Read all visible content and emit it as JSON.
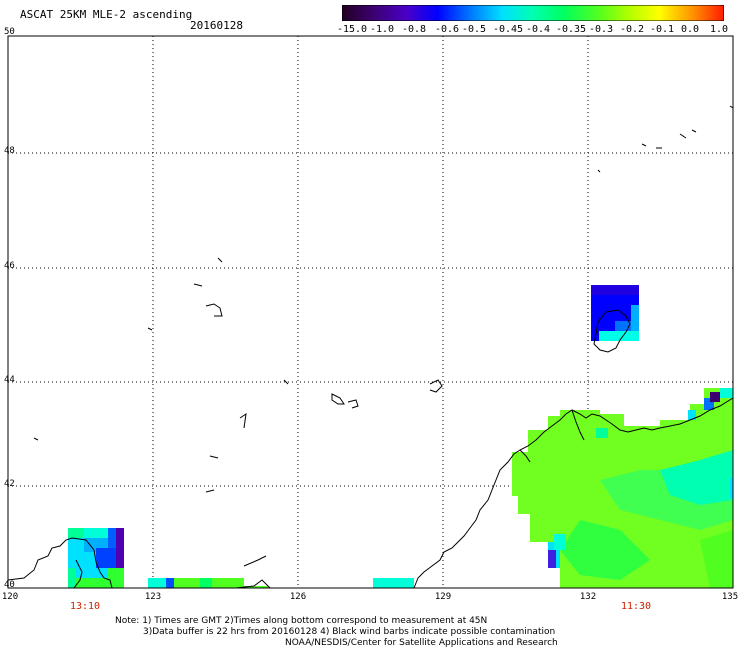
{
  "header": {
    "title": "ASCAT 25KM MLE-2 ascending",
    "date": "20160128"
  },
  "colorbar": {
    "labels": [
      "-15.0",
      "-1.0",
      "-0.8",
      "-0.6",
      "-0.5",
      "-0.45",
      "-0.4",
      "-0.35",
      "-0.3",
      "-0.2",
      "-0.1",
      "0.0",
      "1.0"
    ],
    "colors": [
      "#2a0030",
      "#3c006e",
      "#4a00c8",
      "#0000ff",
      "#0050ff",
      "#00a8ff",
      "#00ffe8",
      "#00ff96",
      "#30ff30",
      "#90ff00",
      "#ffff00",
      "#ff8c00",
      "#ff2000"
    ]
  },
  "axes": {
    "lat_labels": [
      "50",
      "48",
      "46",
      "44",
      "42",
      "40"
    ],
    "lon_labels": [
      "120",
      "123",
      "126",
      "129",
      "132",
      "135"
    ],
    "times": [
      "13:10",
      "11:30"
    ]
  },
  "notes": {
    "line1": "Note: 1) Times are GMT 2)Times along bottom correspond to measurement at 45N",
    "line2": "3)Data buffer is 22 hrs from 20160128 4) Black wind barbs indicate possible contamination",
    "line3": "NOAA/NESDIS/Center for Satellite Applications and Research"
  }
}
